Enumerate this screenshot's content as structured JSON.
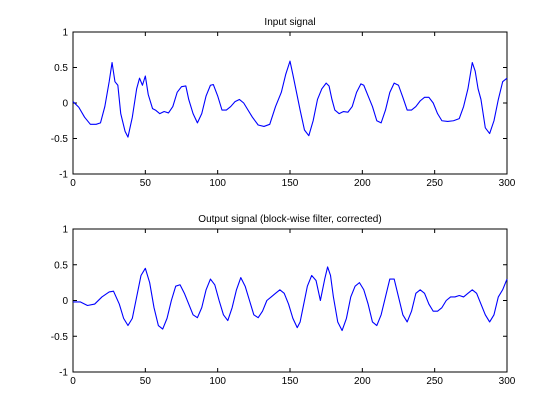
{
  "figure": {
    "background": "#ffffff"
  },
  "chart_data": [
    {
      "type": "line",
      "title": "Input signal",
      "xlabel": "",
      "ylabel": "",
      "xlim": [
        0,
        300
      ],
      "ylim": [
        -1,
        1
      ],
      "xticks": [
        0,
        50,
        100,
        150,
        200,
        250,
        300
      ],
      "yticks": [
        -1,
        -0.5,
        0,
        0.5,
        1
      ],
      "grid": false,
      "legend": "none",
      "series": [
        {
          "color": "#0000ff",
          "points": [
            [
              0,
              0.02
            ],
            [
              4,
              -0.06
            ],
            [
              8,
              -0.2
            ],
            [
              12,
              -0.3
            ],
            [
              16,
              -0.3
            ],
            [
              19,
              -0.28
            ],
            [
              22,
              -0.05
            ],
            [
              25,
              0.3
            ],
            [
              27,
              0.57
            ],
            [
              29,
              0.3
            ],
            [
              31,
              0.25
            ],
            [
              33,
              -0.15
            ],
            [
              36,
              -0.4
            ],
            [
              38,
              -0.48
            ],
            [
              41,
              -0.2
            ],
            [
              44,
              0.2
            ],
            [
              46,
              0.35
            ],
            [
              48,
              0.25
            ],
            [
              50,
              0.38
            ],
            [
              52,
              0.12
            ],
            [
              55,
              -0.08
            ],
            [
              57,
              -0.1
            ],
            [
              60,
              -0.15
            ],
            [
              63,
              -0.12
            ],
            [
              66,
              -0.14
            ],
            [
              69,
              -0.05
            ],
            [
              72,
              0.15
            ],
            [
              75,
              0.23
            ],
            [
              78,
              0.24
            ],
            [
              80,
              0.05
            ],
            [
              83,
              -0.15
            ],
            [
              86,
              -0.28
            ],
            [
              89,
              -0.15
            ],
            [
              92,
              0.1
            ],
            [
              95,
              0.25
            ],
            [
              97,
              0.26
            ],
            [
              100,
              0.1
            ],
            [
              103,
              -0.1
            ],
            [
              106,
              -0.1
            ],
            [
              109,
              -0.05
            ],
            [
              112,
              0.02
            ],
            [
              115,
              0.05
            ],
            [
              118,
              0.0
            ],
            [
              121,
              -0.1
            ],
            [
              124,
              -0.2
            ],
            [
              128,
              -0.31
            ],
            [
              132,
              -0.33
            ],
            [
              136,
              -0.3
            ],
            [
              140,
              -0.05
            ],
            [
              144,
              0.15
            ],
            [
              147,
              0.4
            ],
            [
              150,
              0.59
            ],
            [
              152,
              0.4
            ],
            [
              155,
              0.1
            ],
            [
              157,
              -0.1
            ],
            [
              160,
              -0.38
            ],
            [
              163,
              -0.46
            ],
            [
              166,
              -0.25
            ],
            [
              169,
              0.05
            ],
            [
              172,
              0.2
            ],
            [
              175,
              0.28
            ],
            [
              177,
              0.24
            ],
            [
              179,
              0.05
            ],
            [
              181,
              -0.1
            ],
            [
              184,
              -0.15
            ],
            [
              187,
              -0.12
            ],
            [
              190,
              -0.13
            ],
            [
              193,
              -0.05
            ],
            [
              196,
              0.15
            ],
            [
              199,
              0.27
            ],
            [
              201,
              0.25
            ],
            [
              204,
              0.1
            ],
            [
              207,
              -0.05
            ],
            [
              210,
              -0.25
            ],
            [
              213,
              -0.28
            ],
            [
              216,
              -0.1
            ],
            [
              219,
              0.15
            ],
            [
              222,
              0.28
            ],
            [
              225,
              0.25
            ],
            [
              228,
              0.08
            ],
            [
              231,
              -0.1
            ],
            [
              234,
              -0.1
            ],
            [
              237,
              -0.05
            ],
            [
              240,
              0.03
            ],
            [
              243,
              0.08
            ],
            [
              246,
              0.08
            ],
            [
              249,
              0.0
            ],
            [
              252,
              -0.15
            ],
            [
              255,
              -0.25
            ],
            [
              259,
              -0.26
            ],
            [
              263,
              -0.25
            ],
            [
              267,
              -0.22
            ],
            [
              270,
              -0.05
            ],
            [
              273,
              0.2
            ],
            [
              276,
              0.57
            ],
            [
              278,
              0.45
            ],
            [
              280,
              0.2
            ],
            [
              282,
              0.05
            ],
            [
              285,
              -0.35
            ],
            [
              288,
              -0.43
            ],
            [
              291,
              -0.25
            ],
            [
              294,
              0.05
            ],
            [
              297,
              0.3
            ],
            [
              300,
              0.35
            ]
          ]
        }
      ]
    },
    {
      "type": "line",
      "title": "Output signal (block-wise filter, corrected)",
      "xlabel": "",
      "ylabel": "",
      "xlim": [
        0,
        300
      ],
      "ylim": [
        -1,
        1
      ],
      "xticks": [
        0,
        50,
        100,
        150,
        200,
        250,
        300
      ],
      "yticks": [
        -1,
        -0.5,
        0,
        0.5,
        1
      ],
      "grid": false,
      "legend": "none",
      "series": [
        {
          "color": "#0000ff",
          "points": [
            [
              0,
              -0.02
            ],
            [
              5,
              -0.02
            ],
            [
              10,
              -0.07
            ],
            [
              15,
              -0.05
            ],
            [
              20,
              0.05
            ],
            [
              25,
              0.12
            ],
            [
              28,
              0.13
            ],
            [
              32,
              -0.05
            ],
            [
              35,
              -0.25
            ],
            [
              38,
              -0.35
            ],
            [
              41,
              -0.25
            ],
            [
              44,
              0.05
            ],
            [
              47,
              0.35
            ],
            [
              50,
              0.45
            ],
            [
              53,
              0.25
            ],
            [
              56,
              -0.1
            ],
            [
              59,
              -0.35
            ],
            [
              62,
              -0.4
            ],
            [
              65,
              -0.25
            ],
            [
              68,
              0.0
            ],
            [
              71,
              0.2
            ],
            [
              74,
              0.22
            ],
            [
              77,
              0.1
            ],
            [
              80,
              -0.05
            ],
            [
              83,
              -0.2
            ],
            [
              86,
              -0.24
            ],
            [
              89,
              -0.1
            ],
            [
              92,
              0.15
            ],
            [
              95,
              0.3
            ],
            [
              98,
              0.22
            ],
            [
              101,
              0.0
            ],
            [
              104,
              -0.2
            ],
            [
              107,
              -0.28
            ],
            [
              110,
              -0.1
            ],
            [
              113,
              0.15
            ],
            [
              116,
              0.32
            ],
            [
              119,
              0.2
            ],
            [
              122,
              0.0
            ],
            [
              125,
              -0.2
            ],
            [
              128,
              -0.24
            ],
            [
              131,
              -0.15
            ],
            [
              134,
              0.0
            ],
            [
              137,
              0.05
            ],
            [
              140,
              0.1
            ],
            [
              143,
              0.15
            ],
            [
              146,
              0.1
            ],
            [
              149,
              -0.05
            ],
            [
              152,
              -0.25
            ],
            [
              155,
              -0.38
            ],
            [
              157,
              -0.3
            ],
            [
              159,
              -0.1
            ],
            [
              162,
              0.2
            ],
            [
              165,
              0.35
            ],
            [
              168,
              0.28
            ],
            [
              171,
              0.0
            ],
            [
              174,
              0.3
            ],
            [
              176,
              0.47
            ],
            [
              178,
              0.35
            ],
            [
              180,
              0.05
            ],
            [
              183,
              -0.3
            ],
            [
              186,
              -0.42
            ],
            [
              189,
              -0.25
            ],
            [
              192,
              0.05
            ],
            [
              195,
              0.2
            ],
            [
              198,
              0.25
            ],
            [
              201,
              0.15
            ],
            [
              204,
              -0.05
            ],
            [
              207,
              -0.3
            ],
            [
              210,
              -0.35
            ],
            [
              213,
              -0.2
            ],
            [
              216,
              0.05
            ],
            [
              219,
              0.3
            ],
            [
              222,
              0.3
            ],
            [
              225,
              0.05
            ],
            [
              228,
              -0.2
            ],
            [
              231,
              -0.3
            ],
            [
              234,
              -0.15
            ],
            [
              237,
              0.1
            ],
            [
              240,
              0.15
            ],
            [
              243,
              0.1
            ],
            [
              246,
              -0.05
            ],
            [
              249,
              -0.15
            ],
            [
              252,
              -0.15
            ],
            [
              255,
              -0.1
            ],
            [
              258,
              0.0
            ],
            [
              261,
              0.05
            ],
            [
              264,
              0.05
            ],
            [
              267,
              0.07
            ],
            [
              270,
              0.05
            ],
            [
              273,
              0.1
            ],
            [
              276,
              0.15
            ],
            [
              279,
              0.1
            ],
            [
              282,
              -0.05
            ],
            [
              285,
              -0.2
            ],
            [
              288,
              -0.3
            ],
            [
              291,
              -0.2
            ],
            [
              294,
              0.05
            ],
            [
              297,
              0.15
            ],
            [
              300,
              0.3
            ]
          ]
        }
      ]
    }
  ]
}
